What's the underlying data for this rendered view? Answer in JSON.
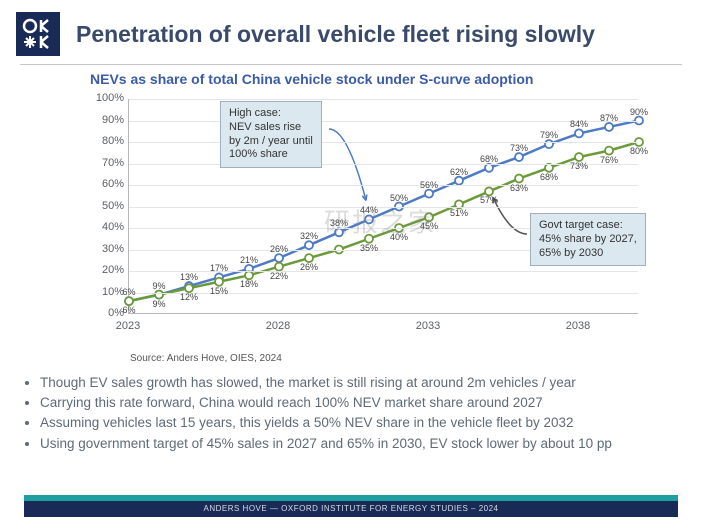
{
  "title": "Penetration of overall vehicle fleet rising slowly",
  "chart": {
    "type": "line",
    "title": "NEVs as share of total China vehicle stock under S-curve adoption",
    "background_color": "#ffffff",
    "grid_color": "#e4e5e8",
    "axis_color": "#b5b8bc",
    "label_fontsize": 11,
    "data_label_fontsize": 9,
    "ylim": [
      0,
      100
    ],
    "ytick_step": 10,
    "ytick_suffix": "%",
    "x_start": 2023,
    "x_end": 2040,
    "x_tick_labels": [
      "2023",
      "2028",
      "2033",
      "2038"
    ],
    "x_tick_positions": [
      2023,
      2028,
      2033,
      2038
    ],
    "marker_style": "circle",
    "marker_fill": "#ffffff",
    "marker_radius": 4,
    "series": {
      "high": {
        "color": "#4e7bc4",
        "width": 2.5,
        "values": [
          6,
          9,
          13,
          17,
          21,
          26,
          32,
          38,
          44,
          50,
          56,
          62,
          68,
          73,
          79,
          84,
          87,
          90
        ],
        "labels": [
          "6%",
          "9%",
          "13%",
          "17%",
          "21%",
          "26%",
          "32%",
          "38%",
          "44%",
          "50%",
          "56%",
          "62%",
          "68%",
          "73%",
          "79%",
          "84%",
          "87%",
          "90%"
        ]
      },
      "govt": {
        "color": "#6a9a3a",
        "width": 2.5,
        "values": [
          6,
          9,
          12,
          15,
          18,
          22,
          26,
          30,
          35,
          40,
          45,
          51,
          57,
          63,
          68,
          73,
          76,
          80
        ],
        "labels": [
          "6%",
          "9%",
          "12%",
          "15%",
          "18%",
          "22%",
          "26%",
          "",
          "35%",
          "40%",
          "45%",
          "51%",
          "57%",
          "63%",
          "68%",
          "73%",
          "76%",
          "80%"
        ]
      }
    },
    "callouts": {
      "high": {
        "text": "High case:\nNEV sales rise\nby 2m / year until\n100% share",
        "bg": "#dce8f0",
        "border": "#a0b0c0"
      },
      "govt": {
        "text": "Govt target case:\n45% share by 2027,\n65% by 2030",
        "bg": "#dce8f0",
        "border": "#a0b0c0"
      }
    },
    "source": "Source: Anders Hove, OIES, 2024"
  },
  "bullets": [
    "Though EV sales growth has slowed, the market is still rising at around 2m vehicles / year",
    "Carrying this rate forward, China would reach 100% NEV market share around 2027",
    "Assuming vehicles last 15 years, this yields a 50% NEV share in the vehicle fleet by 2032",
    "Using government target of 45% sales in 2027 and 65% in 2030, EV stock lower by about 10 pp"
  ],
  "footer": {
    "text": "ANDERS HOVE — OXFORD INSTITUTE FOR ENERGY STUDIES – 2024",
    "accent_color": "#1fa0a0",
    "bg_color": "#1a2a56",
    "text_color": "#d5dce5"
  },
  "watermark": "研报之家",
  "logo": {
    "bg": "#1a2a56",
    "fg": "#ffffff"
  }
}
